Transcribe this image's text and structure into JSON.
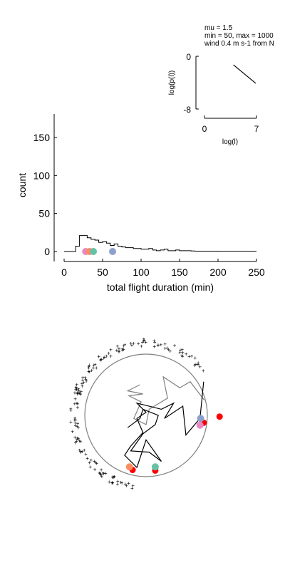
{
  "params": {
    "line1": "mu = 1.5",
    "line2": "min = 50, max = 1000",
    "line3": "wind 0.4 m s-1 from N"
  },
  "chart_data": [
    {
      "type": "line",
      "name": "inset",
      "xlabel": "log(l)",
      "ylabel": "log(p(l))",
      "xlim": [
        0,
        7
      ],
      "ylim": [
        -8,
        0
      ],
      "xticks": [
        "0",
        "7"
      ],
      "yticks": [
        "0",
        "-8"
      ],
      "x": [
        3.9,
        6.9
      ],
      "y": [
        -1.3,
        -4.1
      ],
      "color": "#000000"
    },
    {
      "type": "line",
      "name": "histogram",
      "xlabel": "total flight duration (min)",
      "ylabel": "count",
      "xlim": [
        0,
        250
      ],
      "ylim": [
        -12,
        180
      ],
      "xticks": [
        0,
        50,
        100,
        150,
        200,
        250
      ],
      "yticks": [
        0,
        50,
        100,
        150
      ],
      "step_x": [
        0,
        15,
        20,
        30,
        35,
        40,
        45,
        50,
        55,
        60,
        65,
        70,
        75,
        80,
        85,
        90,
        95,
        100,
        105,
        110,
        115,
        120,
        125,
        130,
        135,
        140,
        145,
        150,
        155,
        160,
        165,
        170,
        175,
        180,
        200,
        205,
        250
      ],
      "step_y": [
        0,
        7,
        21,
        18,
        16,
        15,
        12,
        13,
        11,
        8,
        10,
        7,
        6,
        5,
        5,
        4,
        4,
        3,
        3,
        4,
        2,
        1,
        2,
        3,
        1,
        1,
        2,
        1,
        1,
        1,
        0.7,
        0.5,
        0.3,
        0.5,
        0.3,
        0.3,
        0.3
      ],
      "markers": [
        {
          "x": 28,
          "color": "#e78ac3"
        },
        {
          "x": 33,
          "color": "#fc8d62"
        },
        {
          "x": 38,
          "color": "#66c2a5"
        },
        {
          "x": 63,
          "color": "#8da0cb"
        }
      ]
    },
    {
      "type": "scatter",
      "name": "trajectory-map",
      "circle_color": "#808080",
      "gray_track_color": "#808080",
      "black_track_color": "#000000",
      "red_dot_color": "#ff0000",
      "gray_track": [
        [
          0.95,
          -0.25
        ],
        [
          0.72,
          -0.55
        ],
        [
          0.55,
          -0.45
        ],
        [
          0.28,
          -0.63
        ],
        [
          0.35,
          -0.28
        ],
        [
          0.05,
          -0.1
        ],
        [
          0.0,
          0.15
        ],
        [
          -0.2,
          0.05
        ],
        [
          -0.08,
          -0.22
        ],
        [
          -0.28,
          -0.32
        ],
        [
          -0.05,
          -0.35
        ],
        [
          -0.3,
          -0.4
        ],
        [
          -0.1,
          -0.5
        ]
      ],
      "black_track": [
        [
          0.94,
          -0.55
        ],
        [
          0.88,
          0.05
        ],
        [
          0.65,
          0.32
        ],
        [
          0.6,
          -0.15
        ],
        [
          0.3,
          0.05
        ],
        [
          0.45,
          -0.2
        ],
        [
          0.25,
          -0.1
        ],
        [
          0.05,
          -0.15
        ],
        [
          -0.15,
          -0.2
        ],
        [
          0.0,
          -0.05
        ],
        [
          -0.15,
          0.05
        ],
        [
          -0.05,
          0.28
        ],
        [
          -0.25,
          0.5
        ],
        [
          -0.35,
          0.65
        ],
        [
          -0.15,
          0.85
        ],
        [
          0.0,
          0.4
        ],
        [
          0.25,
          0.75
        ],
        [
          0.05,
          0.6
        ],
        [
          -0.25,
          0.58
        ],
        [
          -0.05,
          0.3
        ],
        [
          0.15,
          0.15
        ],
        [
          0.2,
          0.0
        ],
        [
          -0.05,
          -0.1
        ],
        [
          -0.1,
          0.05
        ],
        [
          -0.3,
          0.2
        ]
      ],
      "red_dots": [
        [
          0.94,
          0.12
        ],
        [
          1.2,
          0.02
        ],
        [
          -0.22,
          0.89
        ],
        [
          0.15,
          0.9
        ]
      ],
      "colored_dots": [
        {
          "pos": [
            0.89,
            0.05
          ],
          "color": "#8da0cb"
        },
        {
          "pos": [
            0.88,
            0.16
          ],
          "color": "#e78ac3"
        },
        {
          "pos": [
            -0.27,
            0.84
          ],
          "color": "#fc8d62"
        },
        {
          "pos": [
            0.15,
            0.84
          ],
          "color": "#66c2a5"
        }
      ]
    }
  ]
}
